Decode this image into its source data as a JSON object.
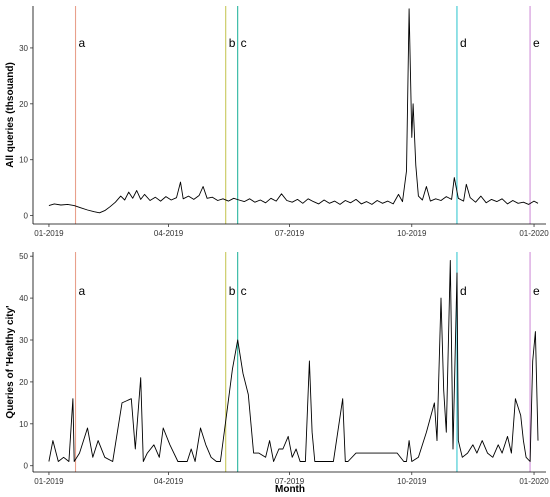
{
  "chart_data": [
    {
      "type": "line",
      "ylabel": "All queries (thsouand)",
      "xlabel": "",
      "xlim": [
        "2018-12-20",
        "2020-01-10"
      ],
      "ylim": [
        -1.5,
        37.5
      ],
      "x_ticks": [
        "2019-01-01",
        "2019-04-01",
        "2019-07-01",
        "2019-10-01",
        "2020-01-01"
      ],
      "x_tick_labels": [
        "01-2019",
        "04-2019",
        "07-2019",
        "10-2019",
        "01-2020"
      ],
      "y_ticks": [
        0,
        10,
        20,
        30
      ],
      "y_tick_labels": [
        "0",
        "10",
        "20",
        "30"
      ],
      "grid": false,
      "line_color": "#000000",
      "events": [
        {
          "label": "a",
          "date": "2019-01-21",
          "color": "#e8a08c"
        },
        {
          "label": "b",
          "date": "2019-05-14",
          "color": "#c8c85a"
        },
        {
          "label": "c",
          "date": "2019-05-23",
          "color": "#2bb5a0"
        },
        {
          "label": "d",
          "date": "2019-11-04",
          "color": "#3ac8d2"
        },
        {
          "label": "e",
          "date": "2019-12-29",
          "color": "#d090d8"
        }
      ],
      "series": [
        {
          "points": [
            [
              "2019-01-01",
              1.8
            ],
            [
              "2019-01-05",
              2.1
            ],
            [
              "2019-01-10",
              1.9
            ],
            [
              "2019-01-15",
              2.0
            ],
            [
              "2019-01-20",
              1.8
            ],
            [
              "2019-01-25",
              1.4
            ],
            [
              "2019-01-30",
              1.0
            ],
            [
              "2019-02-04",
              0.7
            ],
            [
              "2019-02-08",
              0.5
            ],
            [
              "2019-02-12",
              0.9
            ],
            [
              "2019-02-16",
              1.6
            ],
            [
              "2019-02-20",
              2.4
            ],
            [
              "2019-02-24",
              3.5
            ],
            [
              "2019-02-27",
              2.8
            ],
            [
              "2019-03-02",
              4.2
            ],
            [
              "2019-03-05",
              3.1
            ],
            [
              "2019-03-08",
              4.5
            ],
            [
              "2019-03-11",
              2.9
            ],
            [
              "2019-03-14",
              3.8
            ],
            [
              "2019-03-18",
              2.7
            ],
            [
              "2019-03-22",
              3.3
            ],
            [
              "2019-03-26",
              2.6
            ],
            [
              "2019-03-30",
              3.4
            ],
            [
              "2019-04-03",
              2.8
            ],
            [
              "2019-04-07",
              3.2
            ],
            [
              "2019-04-10",
              6.0
            ],
            [
              "2019-04-12",
              3.0
            ],
            [
              "2019-04-16",
              3.5
            ],
            [
              "2019-04-20",
              2.9
            ],
            [
              "2019-04-24",
              3.6
            ],
            [
              "2019-04-27",
              5.2
            ],
            [
              "2019-04-30",
              3.1
            ],
            [
              "2019-05-04",
              3.3
            ],
            [
              "2019-05-08",
              2.7
            ],
            [
              "2019-05-12",
              3.0
            ],
            [
              "2019-05-16",
              2.6
            ],
            [
              "2019-05-20",
              3.1
            ],
            [
              "2019-05-24",
              2.8
            ],
            [
              "2019-05-28",
              2.5
            ],
            [
              "2019-06-01",
              3.0
            ],
            [
              "2019-06-05",
              2.4
            ],
            [
              "2019-06-09",
              2.8
            ],
            [
              "2019-06-13",
              2.3
            ],
            [
              "2019-06-17",
              3.1
            ],
            [
              "2019-06-21",
              2.6
            ],
            [
              "2019-06-25",
              3.9
            ],
            [
              "2019-06-29",
              2.7
            ],
            [
              "2019-07-03",
              2.4
            ],
            [
              "2019-07-07",
              2.9
            ],
            [
              "2019-07-11",
              2.2
            ],
            [
              "2019-07-15",
              3.0
            ],
            [
              "2019-07-19",
              2.5
            ],
            [
              "2019-07-23",
              2.1
            ],
            [
              "2019-07-27",
              2.8
            ],
            [
              "2019-07-31",
              2.2
            ],
            [
              "2019-08-04",
              2.6
            ],
            [
              "2019-08-08",
              2.0
            ],
            [
              "2019-08-12",
              2.7
            ],
            [
              "2019-08-16",
              2.3
            ],
            [
              "2019-08-20",
              2.9
            ],
            [
              "2019-08-24",
              2.1
            ],
            [
              "2019-08-28",
              2.5
            ],
            [
              "2019-09-01",
              2.0
            ],
            [
              "2019-09-05",
              2.7
            ],
            [
              "2019-09-09",
              2.2
            ],
            [
              "2019-09-13",
              2.6
            ],
            [
              "2019-09-17",
              2.1
            ],
            [
              "2019-09-21",
              3.8
            ],
            [
              "2019-09-24",
              2.5
            ],
            [
              "2019-09-27",
              8.0
            ],
            [
              "2019-09-29",
              37.0
            ],
            [
              "2019-10-01",
              14.0
            ],
            [
              "2019-10-02",
              20.0
            ],
            [
              "2019-10-04",
              9.0
            ],
            [
              "2019-10-06",
              3.5
            ],
            [
              "2019-10-09",
              2.8
            ],
            [
              "2019-10-12",
              5.2
            ],
            [
              "2019-10-15",
              2.6
            ],
            [
              "2019-10-19",
              3.0
            ],
            [
              "2019-10-23",
              2.7
            ],
            [
              "2019-10-27",
              3.4
            ],
            [
              "2019-10-31",
              2.9
            ],
            [
              "2019-11-02",
              6.8
            ],
            [
              "2019-11-05",
              3.1
            ],
            [
              "2019-11-09",
              2.6
            ],
            [
              "2019-11-11",
              5.6
            ],
            [
              "2019-11-14",
              3.2
            ],
            [
              "2019-11-18",
              2.4
            ],
            [
              "2019-11-22",
              3.5
            ],
            [
              "2019-11-26",
              2.3
            ],
            [
              "2019-11-30",
              2.9
            ],
            [
              "2019-12-04",
              2.5
            ],
            [
              "2019-12-08",
              3.0
            ],
            [
              "2019-12-12",
              2.1
            ],
            [
              "2019-12-16",
              2.7
            ],
            [
              "2019-12-20",
              2.2
            ],
            [
              "2019-12-24",
              2.4
            ],
            [
              "2019-12-28",
              2.0
            ],
            [
              "2020-01-01",
              2.6
            ],
            [
              "2020-01-04",
              2.2
            ]
          ]
        }
      ]
    },
    {
      "type": "line",
      "ylabel": "Queries of 'Healthy city'",
      "xlabel": "Month",
      "xlim": [
        "2018-12-20",
        "2020-01-10"
      ],
      "ylim": [
        -1.5,
        51
      ],
      "x_ticks": [
        "2019-01-01",
        "2019-04-01",
        "2019-07-01",
        "2019-10-01",
        "2020-01-01"
      ],
      "x_tick_labels": [
        "01-2019",
        "04-2019",
        "07-2019",
        "10-2019",
        "01-2020"
      ],
      "y_ticks": [
        0,
        10,
        20,
        30,
        40,
        50
      ],
      "y_tick_labels": [
        "0",
        "10",
        "20",
        "30",
        "40",
        "50"
      ],
      "grid": false,
      "line_color": "#000000",
      "events": [
        {
          "label": "a",
          "date": "2019-01-21",
          "color": "#e8a08c"
        },
        {
          "label": "b",
          "date": "2019-05-14",
          "color": "#c8c85a"
        },
        {
          "label": "c",
          "date": "2019-05-23",
          "color": "#2bb5a0"
        },
        {
          "label": "d",
          "date": "2019-11-04",
          "color": "#3ac8d2"
        },
        {
          "label": "e",
          "date": "2019-12-29",
          "color": "#d090d8"
        }
      ],
      "series": [
        {
          "points": [
            [
              "2019-01-01",
              1
            ],
            [
              "2019-01-04",
              6
            ],
            [
              "2019-01-08",
              1
            ],
            [
              "2019-01-12",
              2
            ],
            [
              "2019-01-16",
              1
            ],
            [
              "2019-01-19",
              16
            ],
            [
              "2019-01-20",
              1
            ],
            [
              "2019-01-24",
              3
            ],
            [
              "2019-01-30",
              9
            ],
            [
              "2019-02-03",
              2
            ],
            [
              "2019-02-07",
              6
            ],
            [
              "2019-02-12",
              2
            ],
            [
              "2019-02-18",
              1
            ],
            [
              "2019-02-25",
              15
            ],
            [
              "2019-03-04",
              16
            ],
            [
              "2019-03-07",
              4
            ],
            [
              "2019-03-11",
              21
            ],
            [
              "2019-03-13",
              1
            ],
            [
              "2019-03-16",
              3
            ],
            [
              "2019-03-21",
              5
            ],
            [
              "2019-03-25",
              2
            ],
            [
              "2019-03-28",
              9
            ],
            [
              "2019-04-02",
              5
            ],
            [
              "2019-04-08",
              1
            ],
            [
              "2019-04-15",
              1
            ],
            [
              "2019-04-18",
              4
            ],
            [
              "2019-04-21",
              1
            ],
            [
              "2019-04-25",
              9
            ],
            [
              "2019-04-29",
              5
            ],
            [
              "2019-05-03",
              2
            ],
            [
              "2019-05-07",
              1
            ],
            [
              "2019-05-10",
              1
            ],
            [
              "2019-05-15",
              13
            ],
            [
              "2019-05-19",
              23
            ],
            [
              "2019-05-23",
              30
            ],
            [
              "2019-05-27",
              22
            ],
            [
              "2019-05-31",
              17
            ],
            [
              "2019-06-04",
              3
            ],
            [
              "2019-06-08",
              3
            ],
            [
              "2019-06-13",
              2
            ],
            [
              "2019-06-16",
              6
            ],
            [
              "2019-06-19",
              1
            ],
            [
              "2019-06-23",
              4
            ],
            [
              "2019-06-26",
              4
            ],
            [
              "2019-06-30",
              7
            ],
            [
              "2019-07-03",
              2
            ],
            [
              "2019-07-06",
              4
            ],
            [
              "2019-07-09",
              1
            ],
            [
              "2019-07-13",
              1
            ],
            [
              "2019-07-16",
              25
            ],
            [
              "2019-07-18",
              8
            ],
            [
              "2019-07-20",
              1
            ],
            [
              "2019-07-25",
              1
            ],
            [
              "2019-07-30",
              1
            ],
            [
              "2019-08-03",
              1
            ],
            [
              "2019-08-10",
              16
            ],
            [
              "2019-08-12",
              1
            ],
            [
              "2019-08-14",
              1
            ],
            [
              "2019-08-20",
              3
            ],
            [
              "2019-08-30",
              3
            ],
            [
              "2019-09-10",
              3
            ],
            [
              "2019-09-20",
              3
            ],
            [
              "2019-09-25",
              1
            ],
            [
              "2019-09-27",
              1
            ],
            [
              "2019-09-29",
              6
            ],
            [
              "2019-10-01",
              1
            ],
            [
              "2019-10-06",
              2
            ],
            [
              "2019-10-12",
              8
            ],
            [
              "2019-10-18",
              15
            ],
            [
              "2019-10-20",
              6
            ],
            [
              "2019-10-23",
              40
            ],
            [
              "2019-10-25",
              18
            ],
            [
              "2019-10-27",
              8
            ],
            [
              "2019-10-30",
              49
            ],
            [
              "2019-11-01",
              4
            ],
            [
              "2019-11-04",
              46
            ],
            [
              "2019-11-05",
              6
            ],
            [
              "2019-11-08",
              2
            ],
            [
              "2019-11-12",
              3
            ],
            [
              "2019-11-16",
              5
            ],
            [
              "2019-11-19",
              3
            ],
            [
              "2019-11-23",
              6
            ],
            [
              "2019-11-27",
              3
            ],
            [
              "2019-12-01",
              2
            ],
            [
              "2019-12-05",
              5
            ],
            [
              "2019-12-08",
              3
            ],
            [
              "2019-12-12",
              7
            ],
            [
              "2019-12-15",
              3
            ],
            [
              "2019-12-18",
              16
            ],
            [
              "2019-12-22",
              12
            ],
            [
              "2019-12-24",
              6
            ],
            [
              "2019-12-26",
              2
            ],
            [
              "2019-12-29",
              1
            ],
            [
              "2019-12-31",
              25
            ],
            [
              "2020-01-02",
              32
            ],
            [
              "2020-01-04",
              6
            ]
          ]
        }
      ]
    }
  ]
}
